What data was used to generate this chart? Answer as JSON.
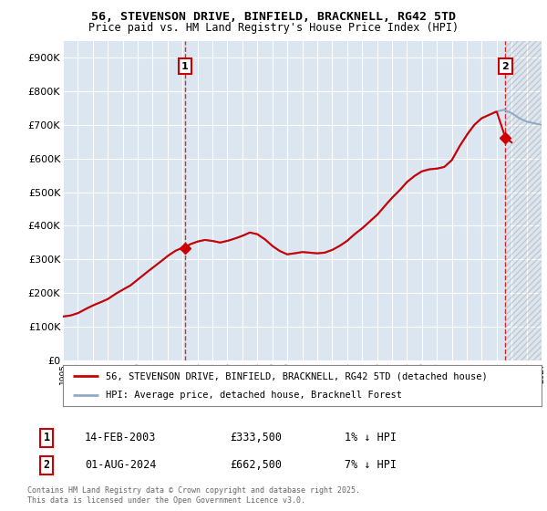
{
  "title": "56, STEVENSON DRIVE, BINFIELD, BRACKNELL, RG42 5TD",
  "subtitle": "Price paid vs. HM Land Registry's House Price Index (HPI)",
  "ylim": [
    0,
    950000
  ],
  "yticks": [
    0,
    100000,
    200000,
    300000,
    400000,
    500000,
    600000,
    700000,
    800000,
    900000
  ],
  "ytick_labels": [
    "£0",
    "£100K",
    "£200K",
    "£300K",
    "£400K",
    "£500K",
    "£600K",
    "£700K",
    "£800K",
    "£900K"
  ],
  "background_color": "#ffffff",
  "plot_bg_color": "#dce6f1",
  "grid_color": "#ffffff",
  "hpi_line_color": "#92a9c8",
  "price_line_color": "#cc0000",
  "sale_marker_color": "#cc0000",
  "vline_color": "#cc0000",
  "sale1_date": 2003.17,
  "sale1_price": 333500,
  "sale2_date": 2024.58,
  "sale2_price": 662500,
  "legend_price_label": "56, STEVENSON DRIVE, BINFIELD, BRACKNELL, RG42 5TD (detached house)",
  "legend_hpi_label": "HPI: Average price, detached house, Bracknell Forest",
  "annotation1_date": "14-FEB-2003",
  "annotation1_price": "£333,500",
  "annotation1_note": "1% ↓ HPI",
  "annotation2_date": "01-AUG-2024",
  "annotation2_price": "£662,500",
  "annotation2_note": "7% ↓ HPI",
  "footer": "Contains HM Land Registry data © Crown copyright and database right 2025.\nThis data is licensed under the Open Government Licence v3.0.",
  "xmin": 1995,
  "xmax": 2027,
  "hpi_knots_x": [
    1995,
    1995.5,
    1996,
    1996.5,
    1997,
    1997.5,
    1998,
    1998.5,
    1999,
    1999.5,
    2000,
    2000.5,
    2001,
    2001.5,
    2002,
    2002.5,
    2003,
    2003.5,
    2004,
    2004.5,
    2005,
    2005.5,
    2006,
    2006.5,
    2007,
    2007.5,
    2008,
    2008.5,
    2009,
    2009.5,
    2010,
    2010.5,
    2011,
    2011.5,
    2012,
    2012.5,
    2013,
    2013.5,
    2014,
    2014.5,
    2015,
    2015.5,
    2016,
    2016.5,
    2017,
    2017.5,
    2018,
    2018.5,
    2019,
    2019.5,
    2020,
    2020.5,
    2021,
    2021.5,
    2022,
    2022.5,
    2023,
    2023.5,
    2024,
    2024.5,
    2025,
    2025.5,
    2026,
    2026.5,
    2027
  ],
  "hpi_knots_y": [
    130000,
    133000,
    140000,
    152000,
    163000,
    172000,
    182000,
    197000,
    210000,
    222000,
    240000,
    258000,
    275000,
    292000,
    310000,
    325000,
    335000,
    345000,
    353000,
    358000,
    355000,
    350000,
    355000,
    362000,
    370000,
    380000,
    375000,
    360000,
    340000,
    325000,
    315000,
    318000,
    322000,
    320000,
    318000,
    320000,
    328000,
    340000,
    355000,
    375000,
    392000,
    412000,
    432000,
    458000,
    483000,
    505000,
    530000,
    548000,
    562000,
    568000,
    570000,
    575000,
    595000,
    635000,
    670000,
    700000,
    720000,
    730000,
    740000,
    745000,
    735000,
    720000,
    710000,
    705000,
    700000
  ],
  "price_knots_x": [
    1995,
    1995.5,
    1996,
    1996.5,
    1997,
    1997.5,
    1998,
    1998.5,
    1999,
    1999.5,
    2000,
    2000.5,
    2001,
    2001.5,
    2002,
    2002.5,
    2003,
    2003.17,
    2003.5,
    2004,
    2004.5,
    2005,
    2005.5,
    2006,
    2006.5,
    2007,
    2007.5,
    2008,
    2008.5,
    2009,
    2009.5,
    2010,
    2010.5,
    2011,
    2011.5,
    2012,
    2012.5,
    2013,
    2013.5,
    2014,
    2014.5,
    2015,
    2015.5,
    2016,
    2016.5,
    2017,
    2017.5,
    2018,
    2018.5,
    2019,
    2019.5,
    2020,
    2020.5,
    2021,
    2021.5,
    2022,
    2022.5,
    2023,
    2023.5,
    2024,
    2024.58,
    2025
  ],
  "price_knots_y": [
    130000,
    133000,
    140000,
    152000,
    163000,
    172000,
    182000,
    197000,
    210000,
    222000,
    240000,
    258000,
    275000,
    292000,
    310000,
    325000,
    335000,
    333500,
    345000,
    353000,
    358000,
    355000,
    350000,
    355000,
    362000,
    370000,
    380000,
    375000,
    360000,
    340000,
    325000,
    315000,
    318000,
    322000,
    320000,
    318000,
    320000,
    328000,
    340000,
    355000,
    375000,
    392000,
    412000,
    432000,
    458000,
    483000,
    505000,
    530000,
    548000,
    562000,
    568000,
    570000,
    575000,
    595000,
    635000,
    670000,
    700000,
    720000,
    730000,
    740000,
    662500,
    648000
  ]
}
